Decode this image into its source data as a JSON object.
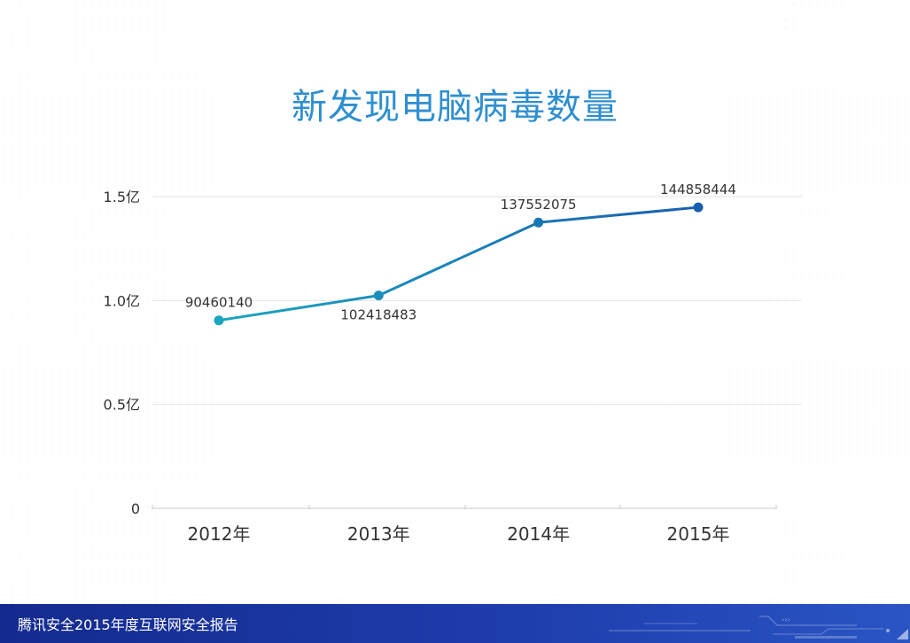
{
  "chart_data": {
    "type": "line",
    "title": "新发现电脑病毒数量",
    "categories": [
      "2012年",
      "2013年",
      "2014年",
      "2015年"
    ],
    "values": [
      90460140,
      102418483,
      137552075,
      144858444
    ],
    "data_labels": [
      "90460140",
      "102418483",
      "137552075",
      "144858444"
    ],
    "ylim": [
      0,
      150000000
    ],
    "yticks": [
      0,
      50000000,
      100000000,
      150000000
    ],
    "ytick_labels": [
      "0",
      "0.5亿",
      "1.0亿",
      "1.5亿"
    ],
    "grid": true,
    "legend": "none",
    "colors": {
      "line_start": "#1aa6bf",
      "line_end": "#1a5fb0",
      "grid": "#e6e6e6",
      "axis": "#c8c8c8",
      "text": "#333333"
    }
  },
  "footer": {
    "text": "腾讯安全2015年度互联网安全报告"
  }
}
